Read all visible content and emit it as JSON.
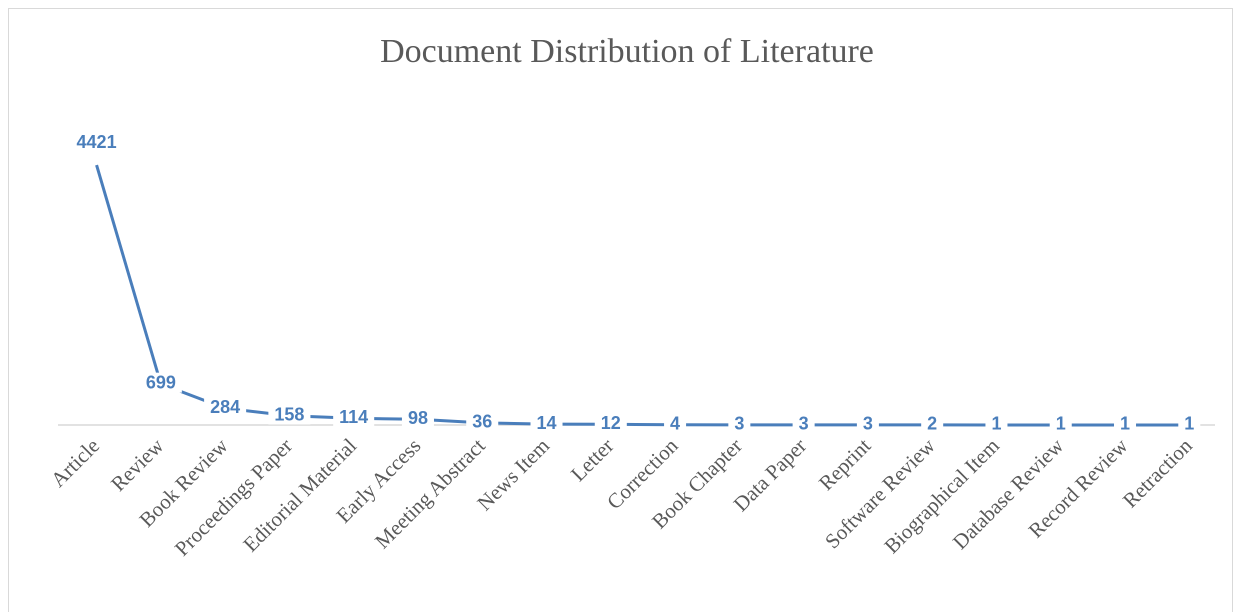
{
  "chart_data": {
    "type": "line",
    "title": "Document Distribution of Literature",
    "categories": [
      "Article",
      "Review",
      "Book Review",
      "Proceedings Paper",
      "Editorial Material",
      "Early Access",
      "Meeting Abstract",
      "News Item",
      "Letter",
      "Correction",
      "Book Chapter",
      "Data Paper",
      "Reprint",
      "Software Review",
      "Biographical Item",
      "Database Review",
      "Record Review",
      "Retraction"
    ],
    "values": [
      4421,
      699,
      284,
      158,
      114,
      98,
      36,
      14,
      12,
      4,
      3,
      3,
      3,
      2,
      1,
      1,
      1,
      1
    ],
    "color": "#4a7ebb",
    "ylim": [
      0,
      5000
    ]
  }
}
